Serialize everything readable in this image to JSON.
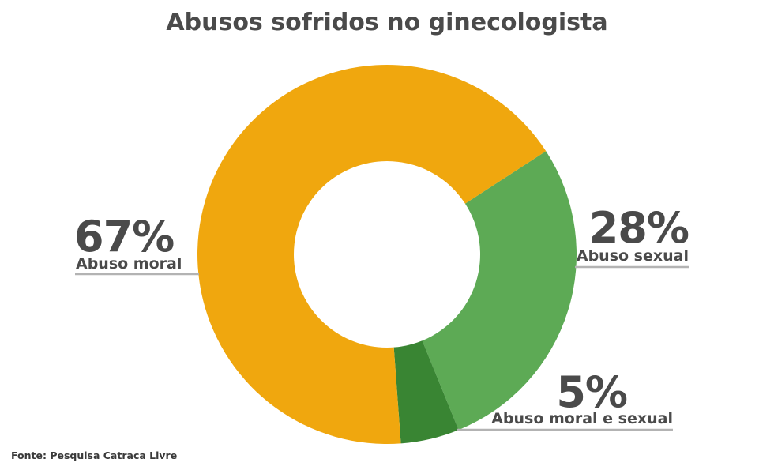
{
  "chart_data": {
    "type": "pie",
    "title": "Abusos sofridos no ginecologista",
    "series": [
      {
        "name": "Abuso moral",
        "value": 67,
        "value_label": "67%",
        "color": "#f0a70e"
      },
      {
        "name": "Abuso sexual",
        "value": 28,
        "value_label": "28%",
        "color": "#5daa55"
      },
      {
        "name": "Abuso moral e sexual",
        "value": 5,
        "value_label": "5%",
        "color": "#398533"
      }
    ],
    "donut": true,
    "legend": "none"
  },
  "source": "Fonte: Pesquisa Catraca Livre"
}
